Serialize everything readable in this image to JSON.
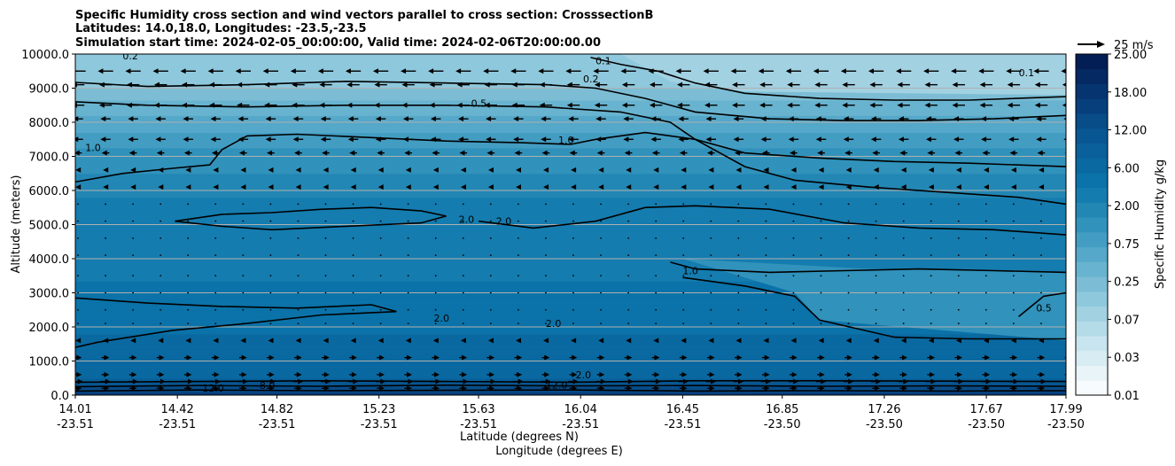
{
  "chart_data": {
    "type": "heatmap",
    "title_lines": [
      "Specific Humidity cross section and wind vectors parallel to cross section: CrosssectionB",
      "Latitudes: 14.0,18.0, Longitudes: -23.5,-23.5",
      "Simulation start time: 2024-02-05_00:00:00, Valid time: 2024-02-06T20:00:00.00"
    ],
    "ylabel": "Altitude (meters)",
    "xlabel": "Latitude (degrees N)",
    "xlabel2": "Longitude (degrees E)",
    "ylim": [
      0,
      10000
    ],
    "xlim": [
      14.01,
      17.99
    ],
    "yticks": [
      "0.0",
      "1000.0",
      "2000.0",
      "3000.0",
      "4000.0",
      "5000.0",
      "6000.0",
      "7000.0",
      "8000.0",
      "9000.0",
      "10000.0"
    ],
    "xticks": [
      {
        "lat": "14.01",
        "lon": "-23.51"
      },
      {
        "lat": "14.42",
        "lon": "-23.51"
      },
      {
        "lat": "14.82",
        "lon": "-23.51"
      },
      {
        "lat": "15.23",
        "lon": "-23.51"
      },
      {
        "lat": "15.63",
        "lon": "-23.51"
      },
      {
        "lat": "16.04",
        "lon": "-23.51"
      },
      {
        "lat": "16.45",
        "lon": "-23.51"
      },
      {
        "lat": "16.85",
        "lon": "-23.50"
      },
      {
        "lat": "17.26",
        "lon": "-23.50"
      },
      {
        "lat": "17.67",
        "lon": "-23.50"
      },
      {
        "lat": "17.99",
        "lon": "-23.50"
      }
    ],
    "grid": "horizontal",
    "colorbar": {
      "label": "Specific Humidity g/kg",
      "levels": [
        0.01,
        0.02,
        0.03,
        0.05,
        0.07,
        0.1,
        0.15,
        0.25,
        0.35,
        0.5,
        0.75,
        1.0,
        1.5,
        2.0,
        3.0,
        4.0,
        6.0,
        8.0,
        10.0,
        12.0,
        15.0,
        18.0,
        22.0,
        25.0
      ],
      "tick_labels": [
        "0.01",
        "0.03",
        "0.07",
        "0.25",
        "0.75",
        "2.00",
        "6.00",
        "12.00",
        "18.00",
        "25.00"
      ],
      "colors": [
        "#f7fbfd",
        "#e8f4f8",
        "#d8edf3",
        "#c8e5ef",
        "#b4dbe8",
        "#a2d1e2",
        "#8ec8dc",
        "#7cbdd5",
        "#68b3cf",
        "#55a8c9",
        "#439dc2",
        "#3192bb",
        "#2387b4",
        "#157caf",
        "#0b73a9",
        "#0a69a0",
        "#09609a",
        "#085692",
        "#084c88",
        "#073f7c",
        "#063470",
        "#052962",
        "#031e55"
      ]
    },
    "wind_reference": "25 m/s",
    "humidity_profile": [
      {
        "alt": 0,
        "q": 15.0
      },
      {
        "alt": 150,
        "q": 11.0
      },
      {
        "alt": 350,
        "q": 9.0
      },
      {
        "alt": 600,
        "q": 5.0
      },
      {
        "alt": 1500,
        "q": 4.2
      },
      {
        "alt": 2500,
        "q": 3.6
      },
      {
        "alt": 4000,
        "q": 2.6
      },
      {
        "alt": 5000,
        "q": 2.4
      },
      {
        "alt": 6000,
        "q": 1.9
      },
      {
        "alt": 7000,
        "q": 1.2
      },
      {
        "alt": 8000,
        "q": 0.6
      },
      {
        "alt": 8500,
        "q": 0.4
      },
      {
        "alt": 9000,
        "q": 0.25
      },
      {
        "alt": 10000,
        "q": 0.15
      }
    ],
    "contours": [
      {
        "level": "0.1",
        "points": [
          [
            16.08,
            9900
          ],
          [
            16.2,
            9700
          ],
          [
            16.35,
            9500
          ],
          [
            16.5,
            9150
          ],
          [
            16.7,
            8850
          ],
          [
            17.0,
            8700
          ],
          [
            17.3,
            8650
          ],
          [
            17.6,
            8650
          ],
          [
            17.99,
            8750
          ]
        ]
      },
      {
        "level": "0.2",
        "points": [
          [
            14.01,
            9170
          ],
          [
            14.3,
            9050
          ],
          [
            14.7,
            9100
          ],
          [
            15.1,
            9200
          ],
          [
            15.5,
            9150
          ],
          [
            15.9,
            9100
          ],
          [
            16.1,
            9000
          ],
          [
            16.3,
            8700
          ],
          [
            16.5,
            8300
          ],
          [
            16.8,
            8100
          ],
          [
            17.1,
            8050
          ],
          [
            17.4,
            8050
          ],
          [
            17.7,
            8100
          ],
          [
            17.99,
            8200
          ]
        ]
      },
      {
        "level": "0.5",
        "points": [
          [
            14.01,
            8600
          ],
          [
            14.3,
            8500
          ],
          [
            14.7,
            8450
          ],
          [
            15.1,
            8500
          ],
          [
            15.5,
            8500
          ],
          [
            15.9,
            8450
          ],
          [
            16.2,
            8300
          ],
          [
            16.4,
            8000
          ],
          [
            16.5,
            7500
          ],
          [
            16.7,
            7100
          ],
          [
            17.0,
            6950
          ],
          [
            17.3,
            6850
          ],
          [
            17.6,
            6800
          ],
          [
            17.99,
            6700
          ]
        ]
      },
      {
        "level": "1.0",
        "points": [
          [
            14.01,
            6250
          ],
          [
            14.2,
            6500
          ],
          [
            14.4,
            6650
          ],
          [
            14.55,
            6750
          ],
          [
            14.6,
            7200
          ],
          [
            14.7,
            7600
          ],
          [
            14.9,
            7650
          ],
          [
            15.2,
            7550
          ],
          [
            15.5,
            7450
          ],
          [
            15.8,
            7400
          ],
          [
            16.0,
            7350
          ],
          [
            16.1,
            7500
          ],
          [
            16.3,
            7700
          ],
          [
            16.5,
            7500
          ],
          [
            16.7,
            6700
          ],
          [
            16.9,
            6300
          ],
          [
            17.2,
            6100
          ],
          [
            17.5,
            5950
          ],
          [
            17.8,
            5800
          ],
          [
            17.99,
            5600
          ]
        ]
      },
      {
        "level": "2.0",
        "points": [
          [
            14.41,
            5100
          ],
          [
            14.6,
            5300
          ],
          [
            14.8,
            5350
          ],
          [
            15.0,
            5450
          ],
          [
            15.2,
            5500
          ],
          [
            15.4,
            5400
          ],
          [
            15.5,
            5250
          ],
          [
            15.4,
            5050
          ],
          [
            15.1,
            4950
          ],
          [
            14.8,
            4850
          ],
          [
            14.6,
            4950
          ],
          [
            14.41,
            5100
          ]
        ]
      },
      {
        "level": "2.0",
        "points": [
          [
            15.63,
            5100
          ],
          [
            15.85,
            4900
          ],
          [
            16.1,
            5100
          ],
          [
            16.3,
            5500
          ],
          [
            16.5,
            5550
          ],
          [
            16.8,
            5450
          ],
          [
            17.1,
            5050
          ],
          [
            17.4,
            4900
          ],
          [
            17.7,
            4850
          ],
          [
            17.99,
            4700
          ]
        ]
      },
      {
        "level": "1.0",
        "points": [
          [
            16.4,
            3900
          ],
          [
            16.5,
            3700
          ],
          [
            16.8,
            3600
          ],
          [
            17.1,
            3650
          ],
          [
            17.4,
            3700
          ],
          [
            17.7,
            3650
          ],
          [
            17.99,
            3600
          ]
        ]
      },
      {
        "level": "0.5",
        "points": [
          [
            16.45,
            3450
          ],
          [
            16.7,
            3200
          ],
          [
            16.9,
            2900
          ],
          [
            17.0,
            2200
          ],
          [
            17.3,
            1700
          ],
          [
            17.6,
            1650
          ],
          [
            17.99,
            1650
          ]
        ]
      },
      {
        "level": "0.5",
        "points": [
          [
            17.8,
            2300
          ],
          [
            17.9,
            2900
          ],
          [
            17.99,
            3000
          ]
        ]
      },
      {
        "level": "2.0",
        "points": [
          [
            14.01,
            2850
          ],
          [
            14.3,
            2700
          ],
          [
            14.6,
            2600
          ],
          [
            14.9,
            2550
          ],
          [
            15.2,
            2650
          ],
          [
            15.3,
            2450
          ],
          [
            15.0,
            2350
          ],
          [
            14.7,
            2100
          ],
          [
            14.4,
            1900
          ],
          [
            14.1,
            1550
          ],
          [
            14.01,
            1400
          ]
        ]
      },
      {
        "level": "8.0",
        "points": [
          [
            14.01,
            380
          ],
          [
            14.5,
            400
          ],
          [
            15.0,
            420
          ],
          [
            15.5,
            400
          ],
          [
            16.0,
            380
          ],
          [
            16.5,
            420
          ],
          [
            17.0,
            420
          ],
          [
            17.5,
            410
          ],
          [
            17.99,
            400
          ]
        ]
      },
      {
        "level": "12.0",
        "points": [
          [
            14.01,
            250
          ],
          [
            14.5,
            280
          ],
          [
            15.0,
            260
          ],
          [
            15.5,
            290
          ],
          [
            16.0,
            270
          ],
          [
            16.5,
            280
          ],
          [
            17.0,
            260
          ],
          [
            17.5,
            270
          ],
          [
            17.99,
            260
          ]
        ]
      },
      {
        "level": "12.0",
        "points": [
          [
            14.01,
            120
          ],
          [
            14.5,
            150
          ],
          [
            15.0,
            130
          ],
          [
            15.5,
            140
          ],
          [
            16.0,
            150
          ],
          [
            16.5,
            120
          ],
          [
            17.0,
            130
          ],
          [
            17.5,
            120
          ],
          [
            17.99,
            130
          ]
        ]
      }
    ],
    "contour_labels": [
      {
        "text": "0.2",
        "lat": 14.2,
        "alt": 9850
      },
      {
        "text": "0.1",
        "lat": 16.1,
        "alt": 9700
      },
      {
        "text": "0.1",
        "lat": 17.8,
        "alt": 9350
      },
      {
        "text": "0.2",
        "lat": 16.05,
        "alt": 9170
      },
      {
        "text": "0.5",
        "lat": 15.6,
        "alt": 8460
      },
      {
        "text": "1.0",
        "lat": 14.05,
        "alt": 7150
      },
      {
        "text": "1.0",
        "lat": 15.95,
        "alt": 7380
      },
      {
        "text": "2.0",
        "lat": 15.55,
        "alt": 5050
      },
      {
        "text": "2.0",
        "lat": 15.7,
        "alt": 5000
      },
      {
        "text": "1.0",
        "lat": 16.45,
        "alt": 3550
      },
      {
        "text": "0.5",
        "lat": 17.87,
        "alt": 2450
      },
      {
        "text": "2.0",
        "lat": 15.45,
        "alt": 2150
      },
      {
        "text": "2.0",
        "lat": 15.9,
        "alt": 2000
      },
      {
        "text": "8.0",
        "lat": 14.75,
        "alt": 180
      },
      {
        "text": "12.0",
        "lat": 14.52,
        "alt": 100
      },
      {
        "text": "12.0",
        "lat": 15.9,
        "alt": 200
      },
      {
        "text": "2.0",
        "lat": 16.02,
        "alt": 500
      }
    ],
    "wind_vectors": {
      "lat_start": 14.01,
      "lat_end": 17.99,
      "lat_count": 37,
      "alt_levels": [
        9500,
        9100,
        8500,
        8100,
        7500,
        7100,
        6600,
        6100,
        5600,
        5100,
        4600,
        4100,
        3500,
        3000,
        2500,
        2100,
        1600,
        1100,
        600,
        400,
        200
      ],
      "u_by_level": [
        -6,
        -5,
        -5,
        -4,
        -4,
        -3,
        -2,
        -2,
        -1,
        -1,
        -1,
        -1,
        -1,
        -1,
        -1,
        -1,
        -2,
        3,
        3,
        4,
        3
      ]
    }
  }
}
